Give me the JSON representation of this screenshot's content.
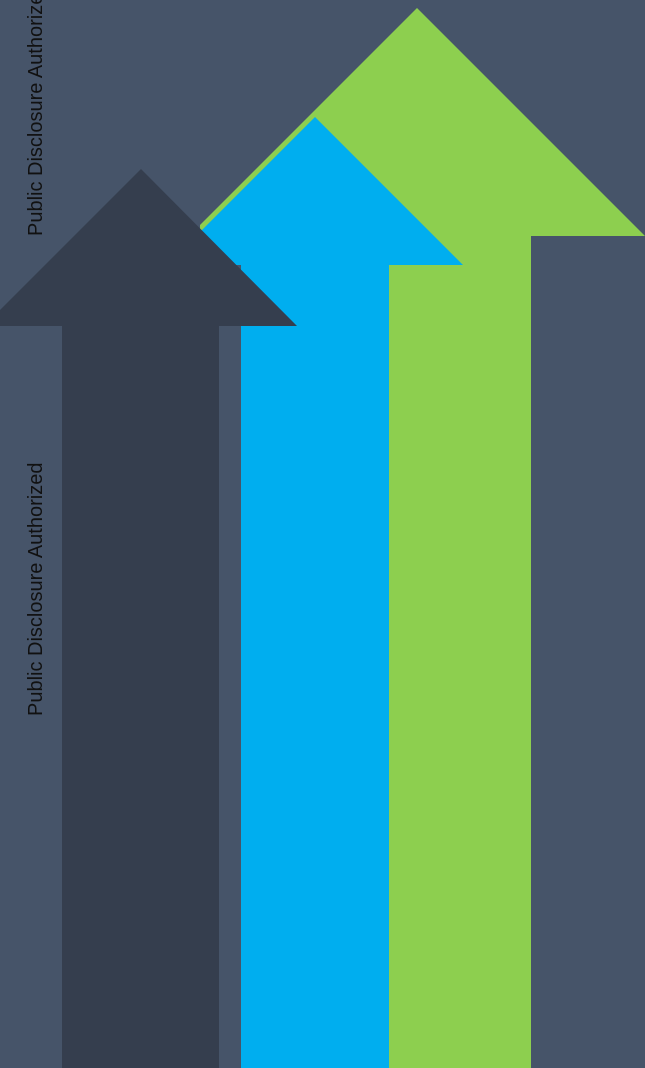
{
  "disclosure": {
    "stamp_top": "Public Disclosure Authorized",
    "stamp_mid": "Public Disclosure Authorized"
  },
  "colors": {
    "background": "#465469",
    "arrow_dark": "#353e4e",
    "arrow_blue": "#00aeef",
    "arrow_green": "#8dcf4f"
  },
  "icons": [
    "arrow-up-icon",
    "arrow-up-icon",
    "arrow-up-icon"
  ]
}
